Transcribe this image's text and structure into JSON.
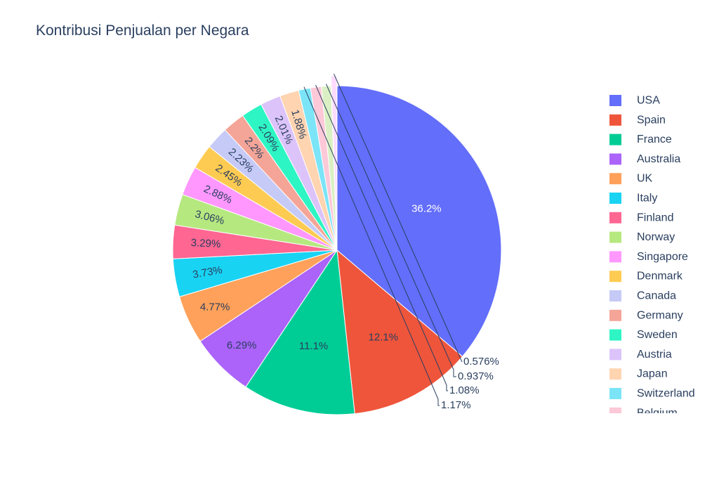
{
  "chart_data": {
    "type": "pie",
    "title": "Kontribusi Penjualan per Negara",
    "slices": [
      {
        "label": "USA",
        "value": 36.2,
        "text": "36.2%",
        "color": "#636efa"
      },
      {
        "label": "Spain",
        "value": 12.1,
        "text": "12.1%",
        "color": "#ef553b"
      },
      {
        "label": "France",
        "value": 11.1,
        "text": "11.1%",
        "color": "#00cc96"
      },
      {
        "label": "Australia",
        "value": 6.29,
        "text": "6.29%",
        "color": "#ab63fa"
      },
      {
        "label": "UK",
        "value": 4.77,
        "text": "4.77%",
        "color": "#ffa15a"
      },
      {
        "label": "Italy",
        "value": 3.73,
        "text": "3.73%",
        "color": "#19d3f3"
      },
      {
        "label": "Finland",
        "value": 3.29,
        "text": "3.29%",
        "color": "#ff6692"
      },
      {
        "label": "Norway",
        "value": 3.06,
        "text": "3.06%",
        "color": "#b6e880"
      },
      {
        "label": "Singapore",
        "value": 2.88,
        "text": "2.88%",
        "color": "#ff97ff"
      },
      {
        "label": "Denmark",
        "value": 2.45,
        "text": "2.45%",
        "color": "#fecb52"
      },
      {
        "label": "Canada",
        "value": 2.23,
        "text": "2.23%",
        "color": "#c6caf7"
      },
      {
        "label": "Germany",
        "value": 2.2,
        "text": "2.2%",
        "color": "#f4a597"
      },
      {
        "label": "Sweden",
        "value": 2.09,
        "text": "2.09%",
        "color": "#2ef5c4"
      },
      {
        "label": "Austria",
        "value": 2.01,
        "text": "2.01%",
        "color": "#dcc4fa"
      },
      {
        "label": "Japan",
        "value": 1.88,
        "text": "1.88%",
        "color": "#ffd4b0"
      },
      {
        "label": "Switzerland",
        "value": 1.17,
        "text": "1.17%",
        "color": "#7ce4f7"
      },
      {
        "label": "Belgium",
        "value": 1.08,
        "text": "1.08%",
        "color": "#fdc8d8"
      },
      {
        "label": "",
        "value": 0.937,
        "text": "0.937%",
        "color": "#daf0c4"
      },
      {
        "label": "",
        "value": 0.576,
        "text": "0.576%",
        "color": "#fedcfe",
        "pulled": true
      }
    ],
    "legend": {
      "placement": "right"
    }
  }
}
